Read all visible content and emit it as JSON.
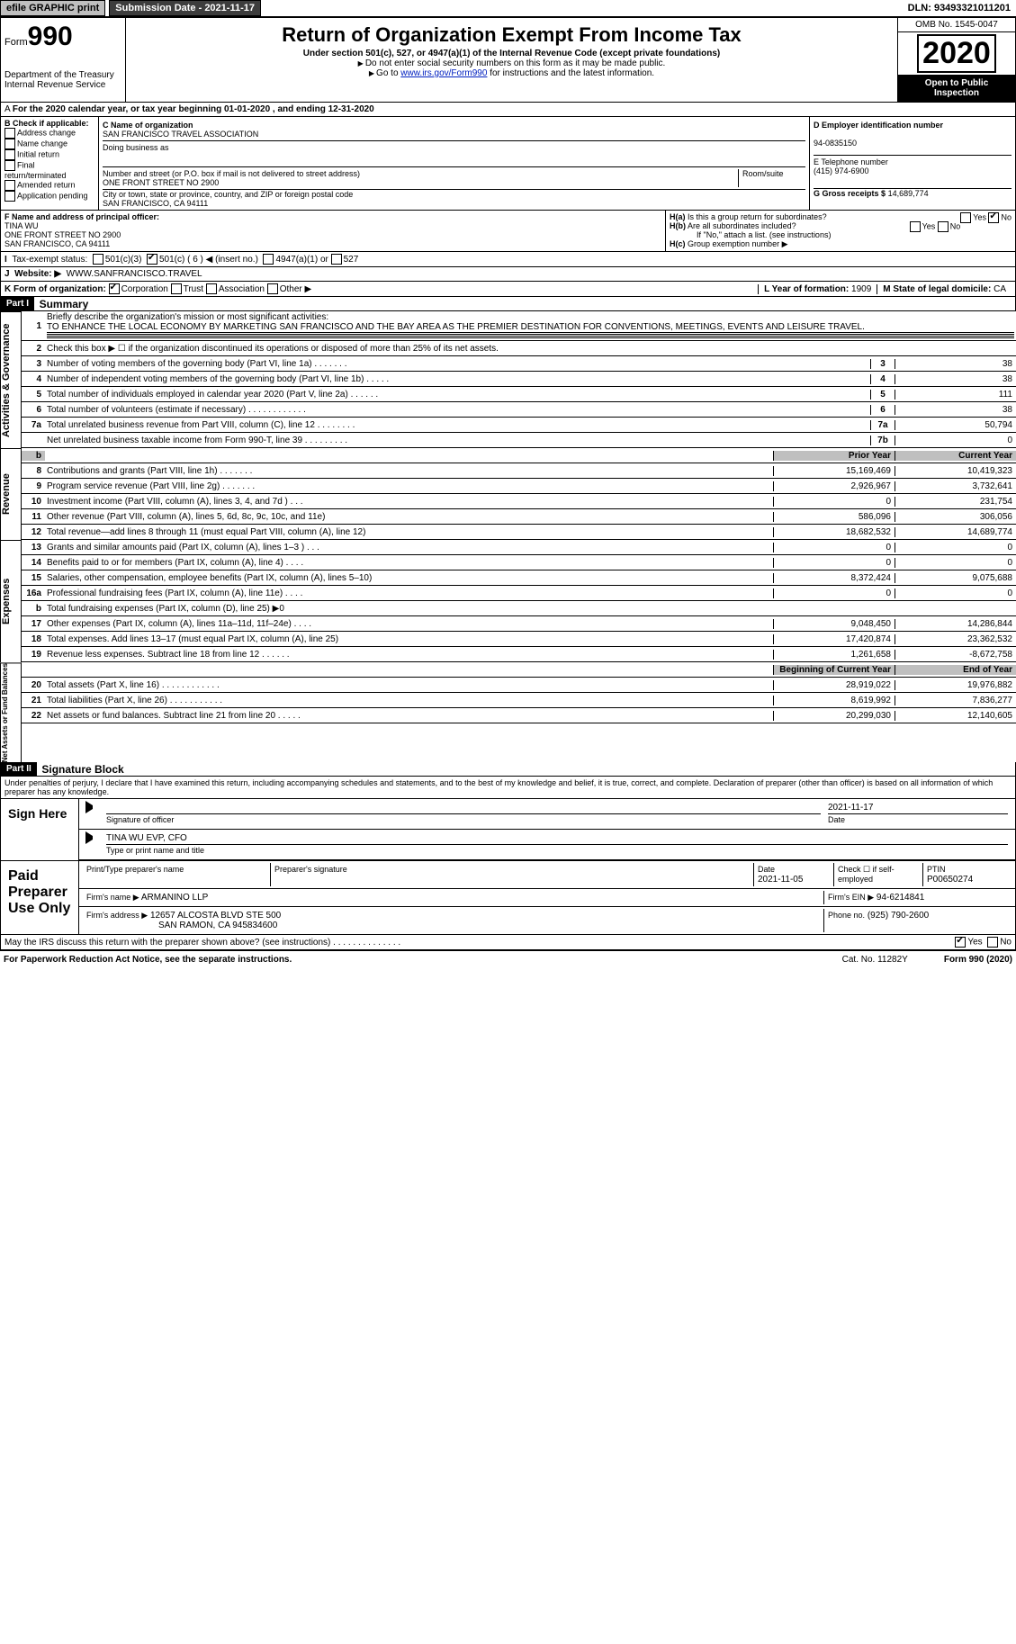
{
  "header": {
    "efile": "efile GRAPHIC print",
    "submission_label": "Submission Date - 2021-11-17",
    "dln": "DLN: 93493321011201"
  },
  "topbox": {
    "form_prefix": "Form",
    "form_no": "990",
    "dept": "Department of the Treasury\nInternal Revenue Service",
    "title": "Return of Organization Exempt From Income Tax",
    "subtitle": "Under section 501(c), 527, or 4947(a)(1) of the Internal Revenue Code (except private foundations)",
    "note1": "Do not enter social security numbers on this form as it may be made public.",
    "note2_pre": "Go to ",
    "note2_link": "www.irs.gov/Form990",
    "note2_post": " for instructions and the latest information.",
    "omb": "OMB No. 1545-0047",
    "year": "2020",
    "open": "Open to Public Inspection"
  },
  "tax_year_line": "For the 2020 calendar year, or tax year beginning 01-01-2020   , and ending 12-31-2020",
  "B": {
    "label": "B Check if applicable:",
    "addr_change": "Address change",
    "name_change": "Name change",
    "initial": "Initial return",
    "final": "Final return/terminated",
    "amended": "Amended return",
    "app_pending": "Application pending"
  },
  "C": {
    "name_lbl": "C Name of organization",
    "name": "SAN FRANCISCO TRAVEL ASSOCIATION",
    "dba_lbl": "Doing business as",
    "addr_lbl": "Number and street (or P.O. box if mail is not delivered to street address)",
    "addr": "ONE FRONT STREET NO 2900",
    "room_lbl": "Room/suite",
    "city_lbl": "City or town, state or province, country, and ZIP or foreign postal code",
    "city": "SAN FRANCISCO, CA  94111"
  },
  "D": {
    "lbl": "D Employer identification number",
    "val": "94-0835150"
  },
  "E": {
    "lbl": "E Telephone number",
    "val": "(415) 974-6900"
  },
  "G": {
    "lbl": "G Gross receipts $",
    "val": "14,689,774"
  },
  "F": {
    "lbl": "F  Name and address of principal officer:",
    "name": "TINA WU",
    "addr1": "ONE FRONT STREET NO 2900",
    "addr2": "SAN FRANCISCO, CA  94111"
  },
  "H": {
    "a": "Is this a group return for subordinates?",
    "b": "Are all subordinates included?",
    "b_note": "If \"No,\" attach a list. (see instructions)",
    "c": "Group exemption number ▶",
    "yes": "Yes",
    "no": "No"
  },
  "I": {
    "lbl": "Tax-exempt status:",
    "o1": "501(c)(3)",
    "o2": "501(c) ( 6 ) ◀ (insert no.)",
    "o3": "4947(a)(1) or",
    "o4": "527"
  },
  "J": {
    "lbl": "Website: ▶",
    "val": "WWW.SANFRANCISCO.TRAVEL"
  },
  "K": {
    "lbl": "K Form of organization:",
    "o1": "Corporation",
    "o2": "Trust",
    "o3": "Association",
    "o4": "Other ▶"
  },
  "L": {
    "lbl": "L Year of formation:",
    "val": "1909"
  },
  "M": {
    "lbl": "M State of legal domicile:",
    "val": "CA"
  },
  "part1": {
    "hd": "Part I",
    "ttl": "Summary",
    "q1_lbl": "Briefly describe the organization's mission or most significant activities:",
    "q1": "TO ENHANCE THE LOCAL ECONOMY BY MARKETING SAN FRANCISCO AND THE BAY AREA AS THE PREMIER DESTINATION FOR CONVENTIONS, MEETINGS, EVENTS AND LEISURE TRAVEL.",
    "q2": "Check this box ▶ ☐  if the organization discontinued its operations or disposed of more than 25% of its net assets.",
    "prior": "Prior Year",
    "current": "Current Year",
    "begin": "Beginning of Current Year",
    "end": "End of Year",
    "sections": {
      "gov": "Activities & Governance",
      "rev": "Revenue",
      "exp": "Expenses",
      "net": "Net Assets or Fund Balances"
    },
    "lines_gov": [
      {
        "n": "3",
        "d": "Number of voting members of the governing body (Part VI, line 1a)  .    .    .    .    .    .    .",
        "b": "3",
        "v": "38"
      },
      {
        "n": "4",
        "d": "Number of independent voting members of the governing body (Part VI, line 1b)  .    .    .    .    .",
        "b": "4",
        "v": "38"
      },
      {
        "n": "5",
        "d": "Total number of individuals employed in calendar year 2020 (Part V, line 2a)  .    .    .    .    .    .",
        "b": "5",
        "v": "111"
      },
      {
        "n": "6",
        "d": "Total number of volunteers (estimate if necessary)  .    .    .    .    .    .    .    .    .    .    .    .",
        "b": "6",
        "v": "38"
      },
      {
        "n": "7a",
        "d": "Total unrelated business revenue from Part VIII, column (C), line 12  .    .    .    .    .    .    .    .",
        "b": "7a",
        "v": "50,794"
      },
      {
        "n": "",
        "d": "Net unrelated business taxable income from Form 990-T, line 39  .    .    .    .    .    .    .    .    .",
        "b": "7b",
        "v": "0"
      }
    ],
    "lines_rev": [
      {
        "n": "8",
        "d": "Contributions and grants (Part VIII, line 1h)  .    .    .    .    .    .    .",
        "py": "15,169,469",
        "cy": "10,419,323"
      },
      {
        "n": "9",
        "d": "Program service revenue (Part VIII, line 2g)  .    .    .    .    .    .    .",
        "py": "2,926,967",
        "cy": "3,732,641"
      },
      {
        "n": "10",
        "d": "Investment income (Part VIII, column (A), lines 3, 4, and 7d )  .    .    .",
        "py": "0",
        "cy": "231,754"
      },
      {
        "n": "11",
        "d": "Other revenue (Part VIII, column (A), lines 5, 6d, 8c, 9c, 10c, and 11e)",
        "py": "586,096",
        "cy": "306,056"
      },
      {
        "n": "12",
        "d": "Total revenue—add lines 8 through 11 (must equal Part VIII, column (A), line 12)",
        "py": "18,682,532",
        "cy": "14,689,774"
      }
    ],
    "lines_exp": [
      {
        "n": "13",
        "d": "Grants and similar amounts paid (Part IX, column (A), lines 1–3 )  .    .    .",
        "py": "0",
        "cy": "0"
      },
      {
        "n": "14",
        "d": "Benefits paid to or for members (Part IX, column (A), line 4)  .    .    .    .",
        "py": "0",
        "cy": "0"
      },
      {
        "n": "15",
        "d": "Salaries, other compensation, employee benefits (Part IX, column (A), lines 5–10)",
        "py": "8,372,424",
        "cy": "9,075,688"
      },
      {
        "n": "16a",
        "d": "Professional fundraising fees (Part IX, column (A), line 11e)  .    .    .    .",
        "py": "0",
        "cy": "0"
      },
      {
        "n": "b",
        "d": "Total fundraising expenses (Part IX, column (D), line 25) ▶0",
        "py": "",
        "cy": "",
        "shade": true
      },
      {
        "n": "17",
        "d": "Other expenses (Part IX, column (A), lines 11a–11d, 11f–24e)  .    .    .    .",
        "py": "9,048,450",
        "cy": "14,286,844"
      },
      {
        "n": "18",
        "d": "Total expenses. Add lines 13–17 (must equal Part IX, column (A), line 25)",
        "py": "17,420,874",
        "cy": "23,362,532"
      },
      {
        "n": "19",
        "d": "Revenue less expenses. Subtract line 18 from line 12  .    .    .    .    .    .",
        "py": "1,261,658",
        "cy": "-8,672,758"
      }
    ],
    "lines_net": [
      {
        "n": "20",
        "d": "Total assets (Part X, line 16)  .    .    .    .    .    .    .    .    .    .    .    .",
        "py": "28,919,022",
        "cy": "19,976,882"
      },
      {
        "n": "21",
        "d": "Total liabilities (Part X, line 26)  .    .    .    .    .    .    .    .    .    .    .",
        "py": "8,619,992",
        "cy": "7,836,277"
      },
      {
        "n": "22",
        "d": "Net assets or fund balances. Subtract line 21 from line 20  .    .    .    .    .",
        "py": "20,299,030",
        "cy": "12,140,605"
      }
    ]
  },
  "part2": {
    "hd": "Part II",
    "ttl": "Signature Block",
    "decl": "Under penalties of perjury, I declare that I have examined this return, including accompanying schedules and statements, and to the best of my knowledge and belief, it is true, correct, and complete. Declaration of preparer (other than officer) is based on all information of which preparer has any knowledge.",
    "sign_here": "Sign Here",
    "sig_officer": "Signature of officer",
    "sig_date": "2021-11-17",
    "date_lbl": "Date",
    "officer_name": "TINA WU  EVP, CFO",
    "type_name": "Type or print name and title",
    "paid": "Paid Preparer Use Only",
    "pp_name_lbl": "Print/Type preparer's name",
    "pp_sig_lbl": "Preparer's signature",
    "pp_date_lbl": "Date",
    "pp_date": "2021-11-05",
    "pp_self": "Check ☐ if self-employed",
    "ptin_lbl": "PTIN",
    "ptin": "P00650274",
    "firm_name_lbl": "Firm's name   ▶",
    "firm_name": "ARMANINO LLP",
    "firm_ein_lbl": "Firm's EIN ▶",
    "firm_ein": "94-6214841",
    "firm_addr_lbl": "Firm's address ▶",
    "firm_addr": "12657 ALCOSTA BLVD STE 500",
    "firm_city": "SAN RAMON, CA  945834600",
    "phone_lbl": "Phone no.",
    "phone": "(925) 790-2600",
    "discuss": "May the IRS discuss this return with the preparer shown above? (see instructions)   .    .    .    .    .    .    .    .    .    .    .    .    .    .",
    "yes": "Yes",
    "no": "No"
  },
  "footer": {
    "pra": "For Paperwork Reduction Act Notice, see the separate instructions.",
    "cat": "Cat. No. 11282Y",
    "form": "Form 990 (2020)"
  }
}
